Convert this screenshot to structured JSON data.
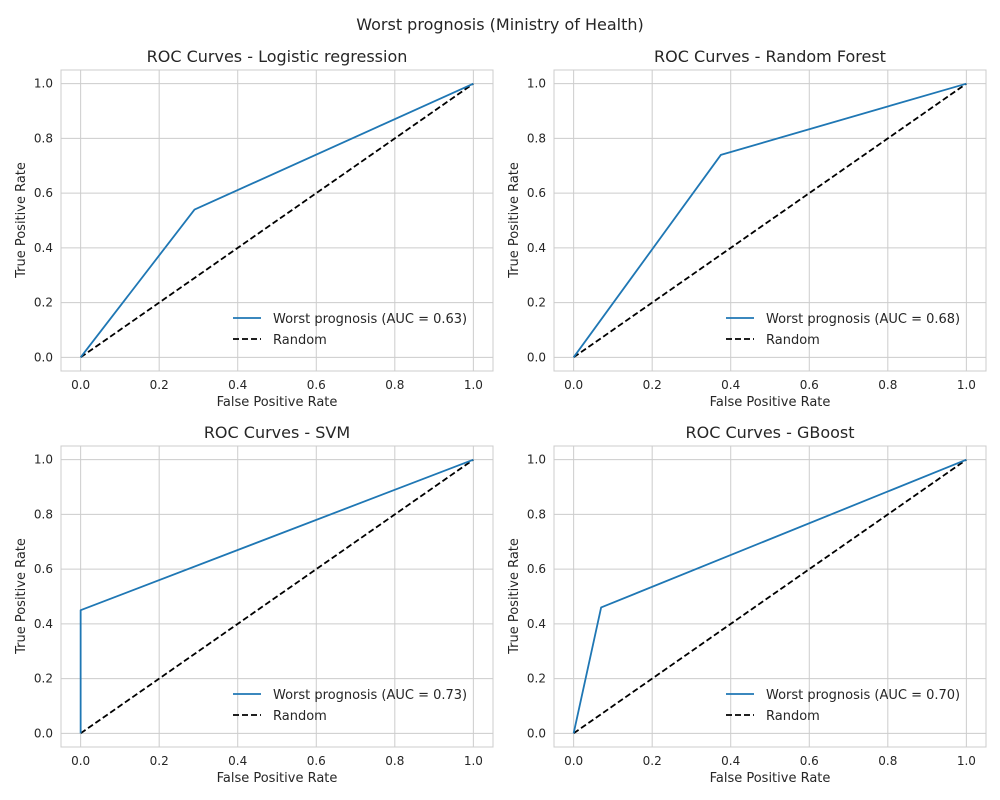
{
  "figure": {
    "suptitle": "Worst prognosis (Ministry of Health)"
  },
  "colors": {
    "roc_line": "#1f77b4",
    "random_line": "#000000",
    "grid": "#cccccc",
    "axis_frame": "#cccccc",
    "text": "#262626"
  },
  "chart_data": [
    {
      "type": "line",
      "title": "ROC Curves - Logistic regression",
      "xlabel": "False Positive Rate",
      "ylabel": "True Positive Rate",
      "xlim": [
        -0.05,
        1.05
      ],
      "ylim": [
        -0.05,
        1.05
      ],
      "xticks": [
        "0.0",
        "0.2",
        "0.4",
        "0.6",
        "0.8",
        "1.0"
      ],
      "yticks": [
        "0.0",
        "0.2",
        "0.4",
        "0.6",
        "0.8",
        "1.0"
      ],
      "grid": true,
      "legend_position": "lower-right",
      "series": [
        {
          "name": "Worst prognosis (AUC = 0.63)",
          "style": "solid",
          "x": [
            0.0,
            0.29,
            1.0
          ],
          "y": [
            0.0,
            0.54,
            1.0
          ]
        },
        {
          "name": "Random",
          "style": "dashed",
          "x": [
            0.0,
            1.0
          ],
          "y": [
            0.0,
            1.0
          ]
        }
      ]
    },
    {
      "type": "line",
      "title": "ROC Curves - Random Forest",
      "xlabel": "False Positive Rate",
      "ylabel": "True Positive Rate",
      "xlim": [
        -0.05,
        1.05
      ],
      "ylim": [
        -0.05,
        1.05
      ],
      "xticks": [
        "0.0",
        "0.2",
        "0.4",
        "0.6",
        "0.8",
        "1.0"
      ],
      "yticks": [
        "0.0",
        "0.2",
        "0.4",
        "0.6",
        "0.8",
        "1.0"
      ],
      "grid": true,
      "legend_position": "lower-right",
      "series": [
        {
          "name": "Worst prognosis (AUC = 0.68)",
          "style": "solid",
          "x": [
            0.0,
            0.375,
            1.0
          ],
          "y": [
            0.0,
            0.74,
            1.0
          ]
        },
        {
          "name": "Random",
          "style": "dashed",
          "x": [
            0.0,
            1.0
          ],
          "y": [
            0.0,
            1.0
          ]
        }
      ]
    },
    {
      "type": "line",
      "title": "ROC Curves - SVM",
      "xlabel": "False Positive Rate",
      "ylabel": "True Positive Rate",
      "xlim": [
        -0.05,
        1.05
      ],
      "ylim": [
        -0.05,
        1.05
      ],
      "xticks": [
        "0.0",
        "0.2",
        "0.4",
        "0.6",
        "0.8",
        "1.0"
      ],
      "yticks": [
        "0.0",
        "0.2",
        "0.4",
        "0.6",
        "0.8",
        "1.0"
      ],
      "grid": true,
      "legend_position": "lower-right",
      "series": [
        {
          "name": "Worst prognosis (AUC = 0.73)",
          "style": "solid",
          "x": [
            0.0,
            0.0,
            1.0
          ],
          "y": [
            0.0,
            0.45,
            1.0
          ]
        },
        {
          "name": "Random",
          "style": "dashed",
          "x": [
            0.0,
            1.0
          ],
          "y": [
            0.0,
            1.0
          ]
        }
      ]
    },
    {
      "type": "line",
      "title": "ROC Curves - GBoost",
      "xlabel": "False Positive Rate",
      "ylabel": "True Positive Rate",
      "xlim": [
        -0.05,
        1.05
      ],
      "ylim": [
        -0.05,
        1.05
      ],
      "xticks": [
        "0.0",
        "0.2",
        "0.4",
        "0.6",
        "0.8",
        "1.0"
      ],
      "yticks": [
        "0.0",
        "0.2",
        "0.4",
        "0.6",
        "0.8",
        "1.0"
      ],
      "grid": true,
      "legend_position": "lower-right",
      "series": [
        {
          "name": "Worst prognosis (AUC = 0.70)",
          "style": "solid",
          "x": [
            0.0,
            0.07,
            1.0
          ],
          "y": [
            0.0,
            0.46,
            1.0
          ]
        },
        {
          "name": "Random",
          "style": "dashed",
          "x": [
            0.0,
            1.0
          ],
          "y": [
            0.0,
            1.0
          ]
        }
      ]
    }
  ]
}
